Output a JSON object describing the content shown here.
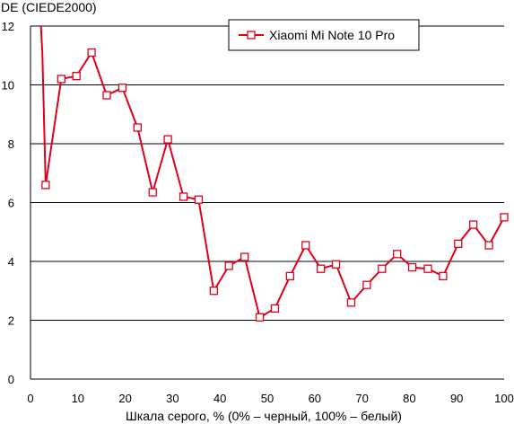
{
  "chart_data": {
    "type": "line",
    "title": "",
    "ylabel": "DE (CIEDE2000)",
    "xlabel": "Шкала серого, % (0% – черный, 100% – белый)",
    "xlim": [
      0,
      100
    ],
    "ylim": [
      0,
      12
    ],
    "xticks": [
      0,
      10,
      20,
      30,
      40,
      50,
      60,
      70,
      80,
      90,
      100
    ],
    "yticks": [
      0,
      2,
      4,
      6,
      8,
      10,
      12
    ],
    "grid": "horizontal",
    "legend_position": "top-right",
    "colors": {
      "series": "#e0001b",
      "grid": "#000000",
      "background": "#ffffff"
    },
    "series": [
      {
        "name": "Xiaomi Mi Note 10 Pro",
        "marker": "square",
        "x": [
          2.2,
          2.5,
          3.2,
          6.5,
          9.7,
          12.9,
          16.1,
          19.4,
          22.6,
          25.8,
          29.0,
          32.3,
          35.5,
          38.7,
          41.9,
          45.2,
          48.4,
          51.6,
          54.8,
          58.1,
          61.3,
          64.5,
          67.7,
          71.0,
          74.2,
          77.4,
          80.6,
          83.9,
          87.1,
          90.3,
          93.5,
          96.8,
          100.0
        ],
        "values": [
          12.0,
          11.1,
          6.6,
          10.2,
          10.3,
          11.1,
          9.65,
          9.9,
          8.55,
          6.35,
          8.15,
          6.2,
          6.1,
          3.0,
          3.85,
          4.15,
          2.1,
          2.4,
          3.5,
          4.55,
          3.75,
          3.9,
          2.6,
          3.2,
          3.75,
          4.25,
          3.8,
          3.75,
          3.5,
          4.6,
          5.25,
          4.55,
          5.5
        ],
        "markers_from_index": 2
      }
    ]
  }
}
